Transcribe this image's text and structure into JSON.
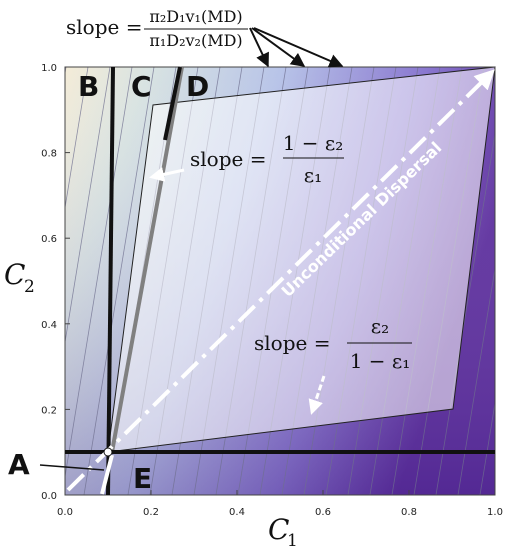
{
  "axes": {
    "x_label": "C",
    "x_label_sub": "1",
    "y_label": "C",
    "y_label_sub": "2",
    "x_ticks": [
      "0.0",
      "0.2",
      "0.4",
      "0.6",
      "0.8",
      "1.0"
    ],
    "y_ticks": [
      "0.0",
      "0.2",
      "0.4",
      "0.6",
      "0.8",
      "1.0"
    ],
    "x_range": [
      0,
      1
    ],
    "y_range": [
      0,
      1
    ]
  },
  "regions": {
    "A": "A",
    "B": "B",
    "C": "C",
    "D": "D",
    "E": "E"
  },
  "annotations": {
    "top_slope": {
      "lhs": "slope =",
      "numerator": "π₂D₁v₁(MD)",
      "denominator": "π₁D₂v₂(MD)"
    },
    "upper_slope": {
      "lhs": "slope =",
      "numerator": "1 − ε₂",
      "denominator": "ε₁"
    },
    "lower_slope": {
      "lhs": "slope =",
      "numerator": "ε₂",
      "denominator": "1 − ε₁"
    },
    "diagonal_label": "Unconditional Dispersal"
  },
  "colors": {
    "light_corner": "#f3ead6",
    "dark_corner": "#5a2a9a",
    "parallelogram_fill": "#ffffff",
    "contour_line": "#6f6f8f"
  }
}
